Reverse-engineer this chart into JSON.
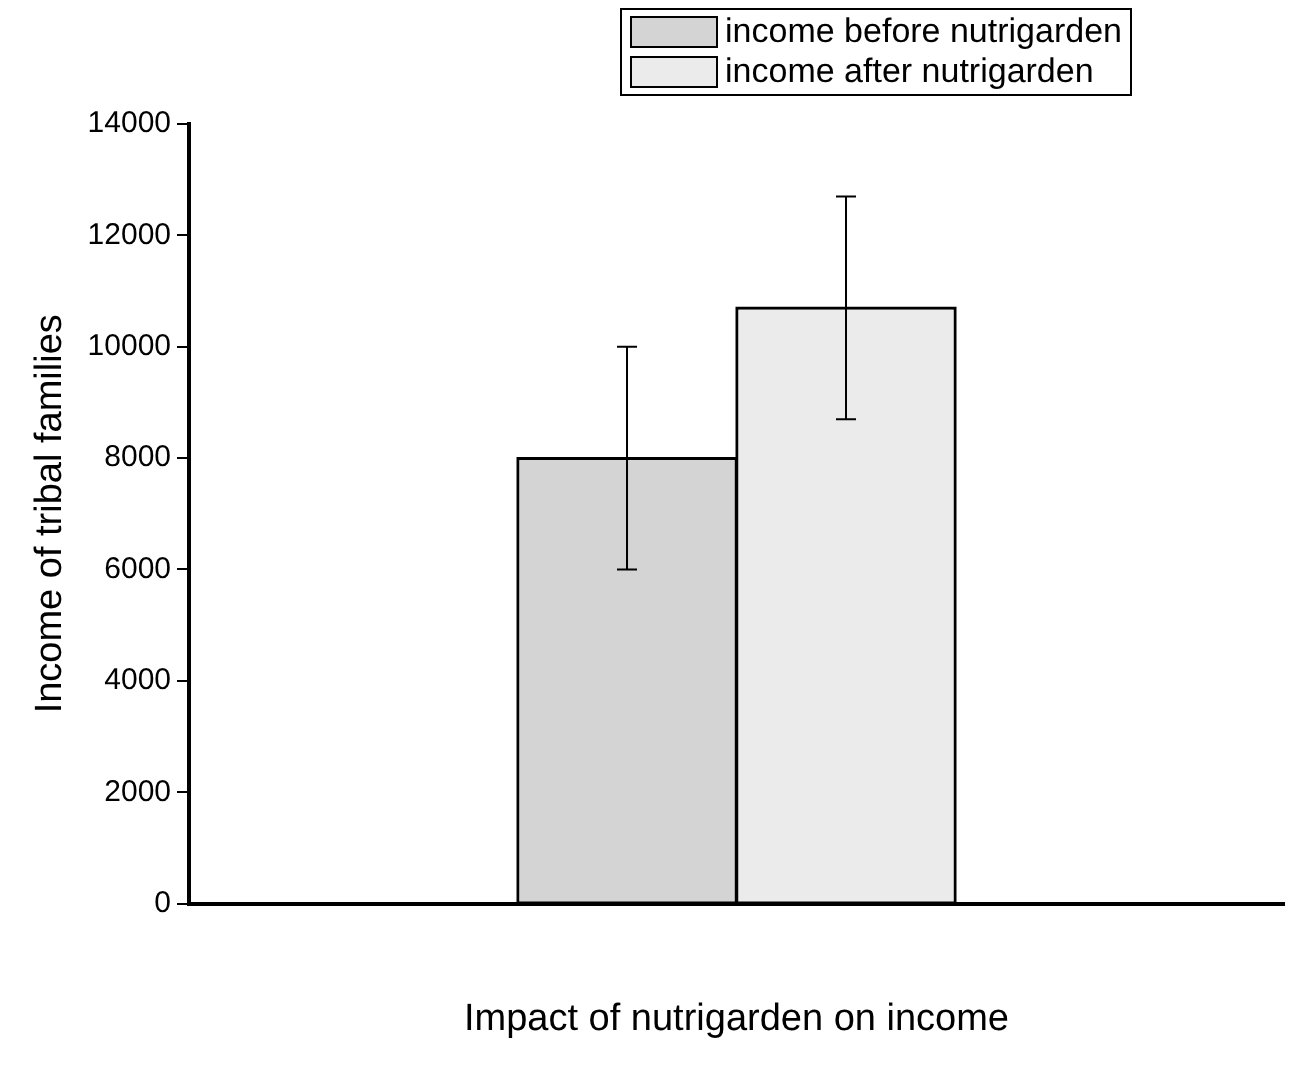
{
  "chart_data": {
    "type": "bar",
    "xlabel": "Impact of nutrigarden on income",
    "ylabel": "Income of tribal families",
    "categories": [
      null
    ],
    "series": [
      {
        "name": "income before nutrigarden",
        "color": "#d4d4d4",
        "values": [
          8000
        ],
        "errors": [
          2000
        ]
      },
      {
        "name": "income after nutrigarden",
        "color": "#ebebeb",
        "values": [
          10700
        ],
        "errors": [
          2000
        ]
      }
    ],
    "ylim": [
      0,
      14000
    ],
    "yticks": [
      0,
      2000,
      4000,
      6000,
      8000,
      10000,
      12000,
      14000
    ],
    "grid": false,
    "legend": "top right"
  }
}
